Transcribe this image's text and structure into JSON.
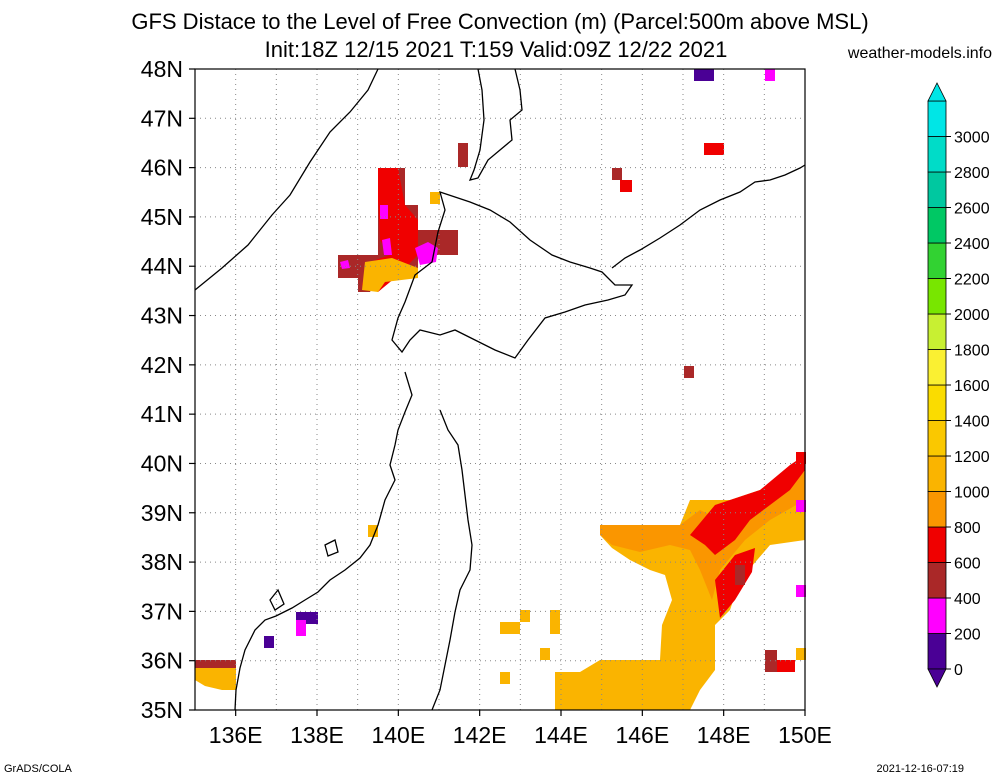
{
  "title_line1": "GFS Distace to the Level of Free Convection (m) (Parcel:500m above MSL)",
  "title_line2": "Init:18Z 12/15 2021 T:159 Valid:09Z 12/22 2021",
  "site": "weather-models.info",
  "footer_left": "GrADS/COLA",
  "footer_right": "2021-12-16-07:19",
  "lat_labels": [
    "48N",
    "47N",
    "46N",
    "45N",
    "44N",
    "43N",
    "42N",
    "41N",
    "40N",
    "39N",
    "38N",
    "37N",
    "36N",
    "35N"
  ],
  "lon_labels": [
    "136E",
    "138E",
    "140E",
    "142E",
    "144E",
    "146E",
    "148E",
    "150E"
  ],
  "colorbar": {
    "levels": [
      "0",
      "200",
      "400",
      "600",
      "800",
      "1000",
      "1200",
      "1400",
      "1600",
      "1800",
      "2000",
      "2200",
      "2400",
      "2600",
      "2800",
      "3000"
    ],
    "colors": [
      "#4a0095",
      "#ff00ff",
      "#aa2828",
      "#f00000",
      "#fa9600",
      "#fab400",
      "#fac800",
      "#fadc00",
      "#faf032",
      "#c8f032",
      "#78e600",
      "#32d232",
      "#00c864",
      "#00c8a0",
      "#00dcc8",
      "#00e6e6"
    ]
  },
  "colors": {
    "coast": "#000000",
    "grid": "#888888"
  }
}
